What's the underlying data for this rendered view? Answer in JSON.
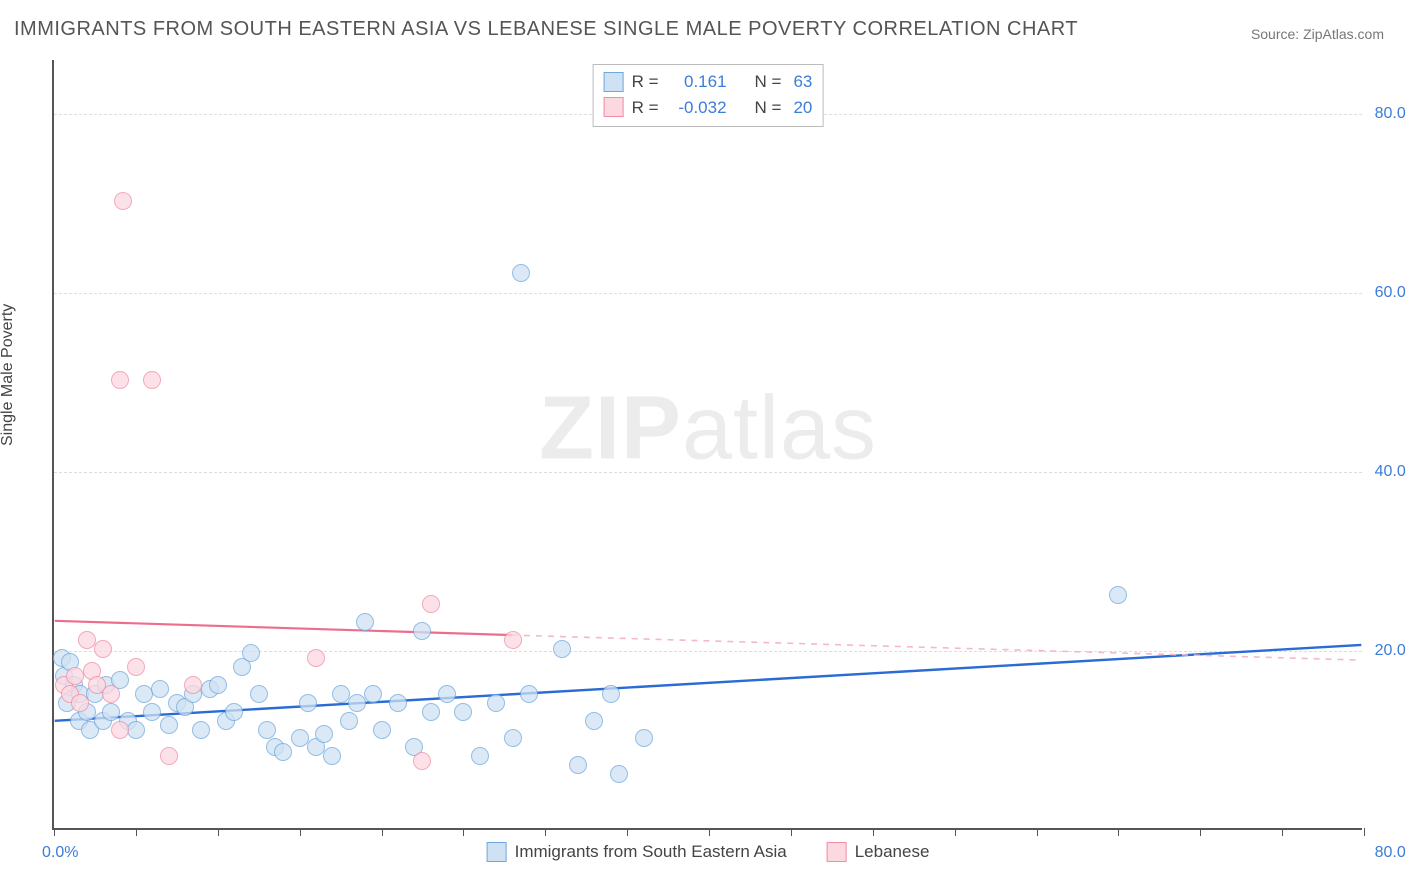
{
  "title": "IMMIGRANTS FROM SOUTH EASTERN ASIA VS LEBANESE SINGLE MALE POVERTY CORRELATION CHART",
  "source_label": "Source:",
  "source_value": "ZipAtlas.com",
  "watermark_bold": "ZIP",
  "watermark_rest": "atlas",
  "ylabel": "Single Male Poverty",
  "chart": {
    "type": "scatter",
    "xlim": [
      0,
      80
    ],
    "ylim": [
      0,
      86
    ],
    "xlabel_min": "0.0%",
    "xlabel_max": "80.0%",
    "ytick_values": [
      20,
      40,
      60,
      80
    ],
    "ytick_labels": [
      "20.0%",
      "40.0%",
      "60.0%",
      "80.0%"
    ],
    "xtick_values": [
      0,
      5,
      10,
      15,
      20,
      25,
      30,
      35,
      40,
      45,
      50,
      55,
      60,
      65,
      70,
      75,
      80
    ],
    "background_color": "#ffffff",
    "grid_color": "#dddddd",
    "marker_radius": 9,
    "marker_border_width": 1.5,
    "series": [
      {
        "name": "Immigrants from South Eastern Asia",
        "fill": "#cfe2f3",
        "stroke": "#6fa8dc",
        "fill_opacity": 0.75,
        "R": "0.161",
        "N": "63",
        "trend": {
          "x1": 0,
          "y1": 12.0,
          "x2": 80,
          "y2": 20.5,
          "color": "#2a6bd4",
          "width": 2.4
        },
        "points": [
          [
            0.5,
            19
          ],
          [
            0.6,
            17
          ],
          [
            1,
            18.5
          ],
          [
            0.8,
            14
          ],
          [
            1.2,
            16
          ],
          [
            1.5,
            12
          ],
          [
            1.6,
            15
          ],
          [
            2,
            13
          ],
          [
            2.2,
            11
          ],
          [
            2.5,
            15
          ],
          [
            3,
            12
          ],
          [
            3.2,
            16
          ],
          [
            3.5,
            13
          ],
          [
            4,
            16.5
          ],
          [
            4.5,
            12
          ],
          [
            5,
            11
          ],
          [
            5.5,
            15
          ],
          [
            6,
            13
          ],
          [
            6.5,
            15.5
          ],
          [
            7,
            11.5
          ],
          [
            7.5,
            14
          ],
          [
            8,
            13.5
          ],
          [
            8.5,
            15
          ],
          [
            9,
            11
          ],
          [
            9.5,
            15.5
          ],
          [
            10,
            16
          ],
          [
            10.5,
            12
          ],
          [
            11,
            13
          ],
          [
            11.5,
            18
          ],
          [
            12,
            19.5
          ],
          [
            12.5,
            15
          ],
          [
            13,
            11
          ],
          [
            13.5,
            9
          ],
          [
            14,
            8.5
          ],
          [
            15,
            10
          ],
          [
            15.5,
            14
          ],
          [
            16,
            9
          ],
          [
            16.5,
            10.5
          ],
          [
            17,
            8
          ],
          [
            17.5,
            15
          ],
          [
            18,
            12
          ],
          [
            18.5,
            14
          ],
          [
            19,
            23
          ],
          [
            19.5,
            15
          ],
          [
            20,
            11
          ],
          [
            21,
            14
          ],
          [
            22,
            9
          ],
          [
            22.5,
            22
          ],
          [
            23,
            13
          ],
          [
            24,
            15
          ],
          [
            25,
            13
          ],
          [
            26,
            8
          ],
          [
            27,
            14
          ],
          [
            28,
            10
          ],
          [
            28.5,
            62
          ],
          [
            29,
            15
          ],
          [
            31,
            20
          ],
          [
            32,
            7
          ],
          [
            33,
            12
          ],
          [
            34,
            15
          ],
          [
            34.5,
            6
          ],
          [
            36,
            10
          ],
          [
            65,
            26
          ]
        ]
      },
      {
        "name": "Lebanese",
        "fill": "#fcd9e1",
        "stroke": "#f08ca5",
        "fill_opacity": 0.75,
        "R": "-0.032",
        "N": "20",
        "trend_solid": {
          "x1": 0,
          "y1": 23.2,
          "x2": 28,
          "y2": 21.6,
          "color": "#ec6e8f",
          "width": 2.2
        },
        "trend_dashed": {
          "x1": 28,
          "y1": 21.6,
          "x2": 80,
          "y2": 18.8,
          "color": "#f4b8c7",
          "width": 1.6
        },
        "points": [
          [
            0.6,
            16
          ],
          [
            1,
            15
          ],
          [
            1.3,
            17
          ],
          [
            1.6,
            14
          ],
          [
            2,
            21
          ],
          [
            2.3,
            17.5
          ],
          [
            2.6,
            16
          ],
          [
            3,
            20
          ],
          [
            3.5,
            15
          ],
          [
            4,
            11
          ],
          [
            4,
            50
          ],
          [
            4.2,
            70
          ],
          [
            5,
            18
          ],
          [
            6,
            50
          ],
          [
            7,
            8
          ],
          [
            8.5,
            16
          ],
          [
            16,
            19
          ],
          [
            22.5,
            7.5
          ],
          [
            23,
            25
          ],
          [
            28,
            21
          ]
        ]
      }
    ]
  },
  "stats_legend": {
    "R_label": "R =",
    "N_label": "N ="
  },
  "bottom_legend": {
    "items": [
      "Immigrants from South Eastern Asia",
      "Lebanese"
    ]
  }
}
